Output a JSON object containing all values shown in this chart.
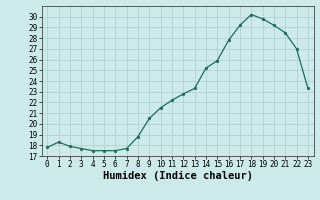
{
  "xlabel": "Humidex (Indice chaleur)",
  "background_color": "#cdeaea",
  "line_color": "#1e6b5a",
  "marker_color": "#1e6b5a",
  "x": [
    0,
    1,
    2,
    3,
    4,
    5,
    6,
    7,
    8,
    9,
    10,
    11,
    12,
    13,
    14,
    15,
    16,
    17,
    18,
    19,
    20,
    21,
    22,
    23
  ],
  "y": [
    17.8,
    18.3,
    17.9,
    17.7,
    17.5,
    17.5,
    17.5,
    17.7,
    18.8,
    20.5,
    21.5,
    22.2,
    22.8,
    23.3,
    25.2,
    25.9,
    27.8,
    29.2,
    30.2,
    29.8,
    29.2,
    28.5,
    27.0,
    23.3
  ],
  "ylim": [
    17,
    31
  ],
  "xlim": [
    -0.5,
    23.5
  ],
  "yticks": [
    17,
    18,
    19,
    20,
    21,
    22,
    23,
    24,
    25,
    26,
    27,
    28,
    29,
    30
  ],
  "xticks": [
    0,
    1,
    2,
    3,
    4,
    5,
    6,
    7,
    8,
    9,
    10,
    11,
    12,
    13,
    14,
    15,
    16,
    17,
    18,
    19,
    20,
    21,
    22,
    23
  ],
  "grid_color": "#b0cccc",
  "tick_fontsize": 5.5,
  "xlabel_fontsize": 7.5
}
